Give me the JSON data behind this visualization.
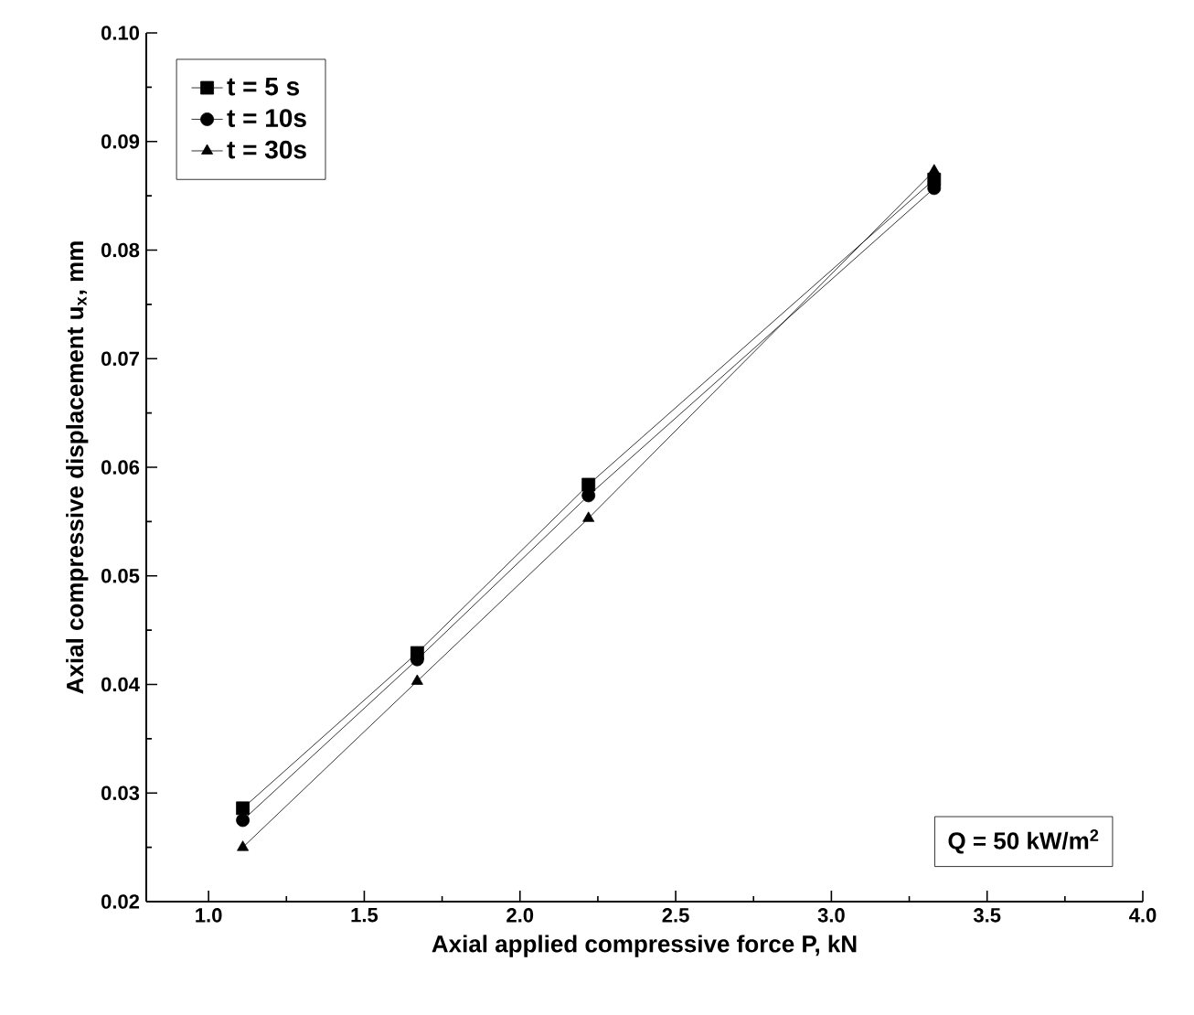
{
  "chart_data": {
    "type": "line",
    "xlabel": "Axial applied compressive force P, kN",
    "ylabel": "Axial compressive displacement u$_{x}$,  mm",
    "x": [
      1.11,
      1.67,
      2.22,
      3.33
    ],
    "series": [
      {
        "name": "t =  5 s",
        "color": "#000000",
        "marker": "square",
        "values": [
          0.0286,
          0.0429,
          0.0584,
          0.0865
        ]
      },
      {
        "name": "t = 10s",
        "color": "#000000",
        "marker": "circle",
        "values": [
          0.0275,
          0.0423,
          0.0574,
          0.0857
        ]
      },
      {
        "name": "t = 30s",
        "color": "#000000",
        "marker": "triangle",
        "values": [
          0.025,
          0.0403,
          0.0553,
          0.0873
        ]
      }
    ],
    "xlim": [
      0.8,
      4.0
    ],
    "ylim": [
      0.02,
      0.1
    ],
    "xticks": [
      {
        "value": 1.0,
        "label": "1.0"
      },
      {
        "value": 1.5,
        "label": "1.5"
      },
      {
        "value": 2.0,
        "label": "2.0"
      },
      {
        "value": 2.5,
        "label": "2.5"
      },
      {
        "value": 3.0,
        "label": "3.0"
      },
      {
        "value": 3.5,
        "label": "3.5"
      },
      {
        "value": 4.0,
        "label": "4.0"
      }
    ],
    "yticks": [
      {
        "value": 0.02,
        "label": "0.02"
      },
      {
        "value": 0.03,
        "label": "0.03"
      },
      {
        "value": 0.04,
        "label": "0.04"
      },
      {
        "value": 0.05,
        "label": "0.05"
      },
      {
        "value": 0.06,
        "label": "0.06"
      },
      {
        "value": 0.07,
        "label": "0.07"
      },
      {
        "value": 0.08,
        "label": "0.08"
      },
      {
        "value": 0.09,
        "label": "0.09"
      },
      {
        "value": 0.1,
        "label": "0.10"
      }
    ],
    "annotations": [
      "Q = 50 kW/m$^{2}$"
    ],
    "legend": "top left",
    "grid": false,
    "line_style": "solid"
  }
}
